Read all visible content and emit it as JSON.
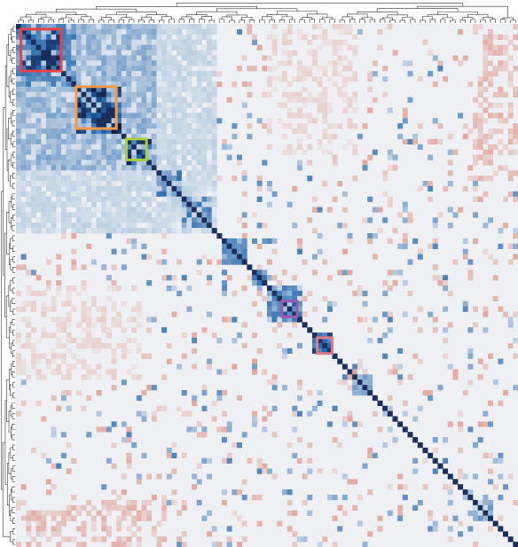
{
  "chart_data": {
    "type": "heatmap",
    "title": "",
    "xlabel": "",
    "ylabel": "",
    "n": 100,
    "grid": false,
    "legend": "none",
    "colormap": {
      "negative": "#d6604d",
      "neutral": "#eef0f3",
      "positive": "#2166ac",
      "diagonal": "#1b2f5c"
    },
    "value_range": [
      -1,
      1
    ],
    "diagonal_value": 1.0,
    "blocks": [
      {
        "rows": [
          0,
          12
        ],
        "cols": [
          0,
          12
        ],
        "value": 0.55
      },
      {
        "rows": [
          0,
          28
        ],
        "cols": [
          0,
          28
        ],
        "value": 0.35
      },
      {
        "rows": [
          0,
          40
        ],
        "cols": [
          0,
          40
        ],
        "value": 0.15
      },
      {
        "rows": [
          1,
          9
        ],
        "cols": [
          1,
          9
        ],
        "value": 0.9
      },
      {
        "rows": [
          12,
          21
        ],
        "cols": [
          12,
          21
        ],
        "value": 0.95
      },
      {
        "rows": [
          22,
          27
        ],
        "cols": [
          22,
          27
        ],
        "value": 0.9
      },
      {
        "rows": [
          28,
          33
        ],
        "cols": [
          28,
          33
        ],
        "value": 0.6
      },
      {
        "rows": [
          33,
          39
        ],
        "cols": [
          33,
          39
        ],
        "value": 0.55
      },
      {
        "rows": [
          41,
          46
        ],
        "cols": [
          41,
          46
        ],
        "value": 0.5
      },
      {
        "rows": [
          47,
          50
        ],
        "cols": [
          47,
          50
        ],
        "value": 0.6
      },
      {
        "rows": [
          50,
          57
        ],
        "cols": [
          50,
          57
        ],
        "value": 0.55
      },
      {
        "rows": [
          53,
          56
        ],
        "cols": [
          53,
          56
        ],
        "value": 0.85
      },
      {
        "rows": [
          59,
          63
        ],
        "cols": [
          59,
          63
        ],
        "value": 0.85
      },
      {
        "rows": [
          67,
          71
        ],
        "cols": [
          67,
          71
        ],
        "value": 0.4
      },
      {
        "rows": [
          91,
          95
        ],
        "cols": [
          91,
          95
        ],
        "value": 0.5
      }
    ],
    "negative_regions": [
      {
        "rows": [
          0,
          30
        ],
        "cols": [
          91,
          100
        ],
        "value": -0.3
      },
      {
        "rows": [
          91,
          100
        ],
        "cols": [
          0,
          30
        ],
        "value": -0.3
      },
      {
        "rows": [
          50,
          68
        ],
        "cols": [
          0,
          25
        ],
        "value": -0.15
      },
      {
        "rows": [
          0,
          25
        ],
        "cols": [
          50,
          68
        ],
        "value": -0.15
      }
    ],
    "highlight_boxes": [
      {
        "rows": [
          1,
          9
        ],
        "cols": [
          1,
          9
        ],
        "color": "#e8414b"
      },
      {
        "rows": [
          12,
          20
        ],
        "cols": [
          12,
          20
        ],
        "color": "#f2994a"
      },
      {
        "rows": [
          22,
          26
        ],
        "cols": [
          22,
          26
        ],
        "color": "#a6cf3f"
      },
      {
        "rows": [
          53,
          56
        ],
        "cols": [
          53,
          56
        ],
        "color": "#9b59b6"
      },
      {
        "rows": [
          60,
          63
        ],
        "cols": [
          60,
          63
        ],
        "color": "#e07a8a"
      }
    ]
  }
}
